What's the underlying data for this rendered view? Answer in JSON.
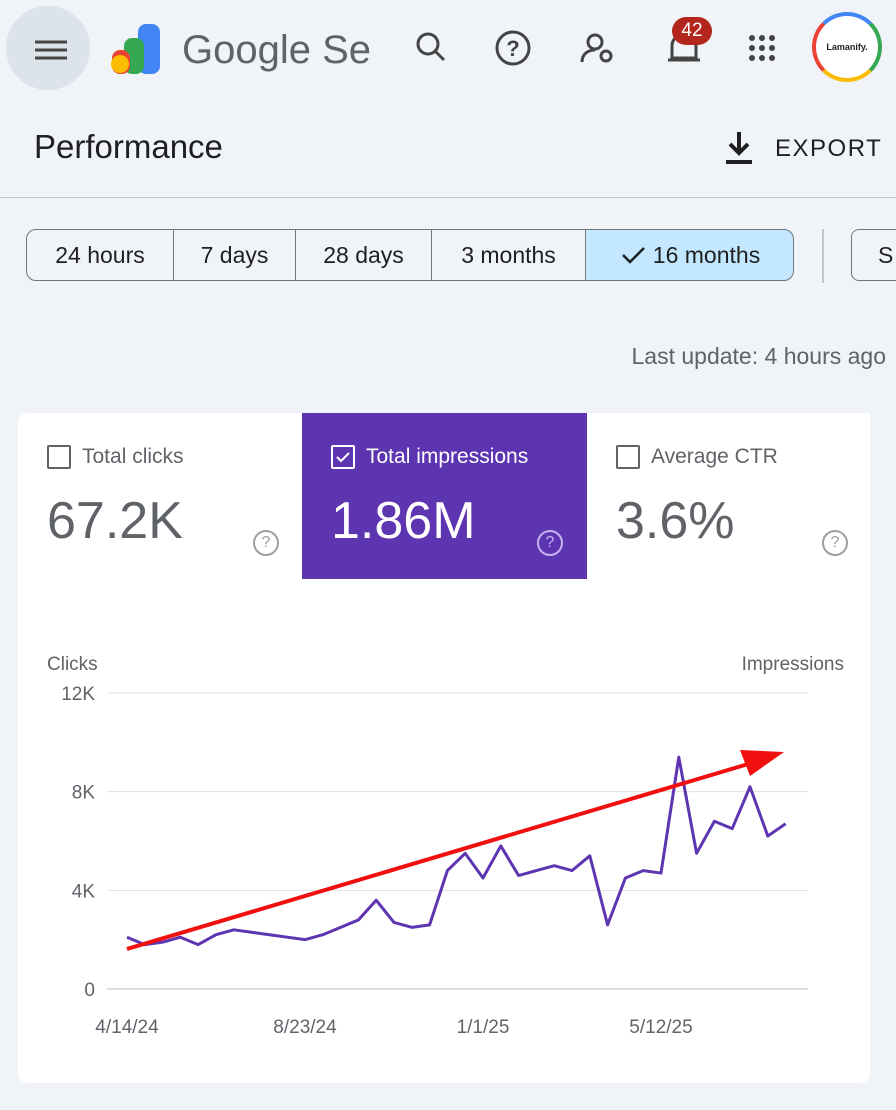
{
  "header": {
    "product": "Google Se",
    "notifications": "42",
    "avatar": "Lamanify."
  },
  "page": {
    "title": "Performance",
    "export": "EXPORT"
  },
  "filters": {
    "options": [
      "24 hours",
      "7 days",
      "28 days",
      "3 months",
      "16 months"
    ],
    "selected": "16 months",
    "more": "S"
  },
  "last_update": "Last update: 4 hours ago",
  "metrics": [
    {
      "label": "Total clicks",
      "value": "67.2K",
      "checked": false
    },
    {
      "label": "Total impressions",
      "value": "1.86M",
      "checked": true
    },
    {
      "label": "Average CTR",
      "value": "3.6%",
      "checked": false
    }
  ],
  "chart_data": {
    "type": "line",
    "y_label": "Clicks",
    "y2_label": "Impressions",
    "categories": [
      "4/14/24",
      null,
      null,
      null,
      null,
      null,
      null,
      null,
      null,
      null,
      "8/23/24",
      null,
      null,
      null,
      null,
      null,
      null,
      null,
      null,
      null,
      "1/1/25",
      null,
      null,
      null,
      null,
      null,
      null,
      null,
      null,
      null,
      "5/12/25",
      null,
      null,
      null,
      null,
      null,
      null,
      null
    ],
    "series": [
      {
        "name": "Total impressions",
        "color": "#5e35b1",
        "values": [
          2100,
          1800,
          1900,
          2100,
          1800,
          2200,
          2400,
          2300,
          2200,
          2100,
          2000,
          2200,
          2500,
          2800,
          3600,
          2700,
          2500,
          2600,
          4800,
          5500,
          4500,
          5800,
          4600,
          4800,
          5000,
          4800,
          5400,
          2600,
          4500,
          4800,
          4700,
          9400,
          5500,
          6800,
          6500,
          8200,
          6200,
          6700
        ]
      }
    ],
    "ylim": [
      0,
      12000
    ],
    "yticks": [
      0,
      {
        "value": 4000,
        "label": "4K"
      },
      {
        "value": 8000,
        "label": "8K"
      },
      {
        "value": 12000,
        "label": "12K"
      }
    ],
    "grid": true
  }
}
